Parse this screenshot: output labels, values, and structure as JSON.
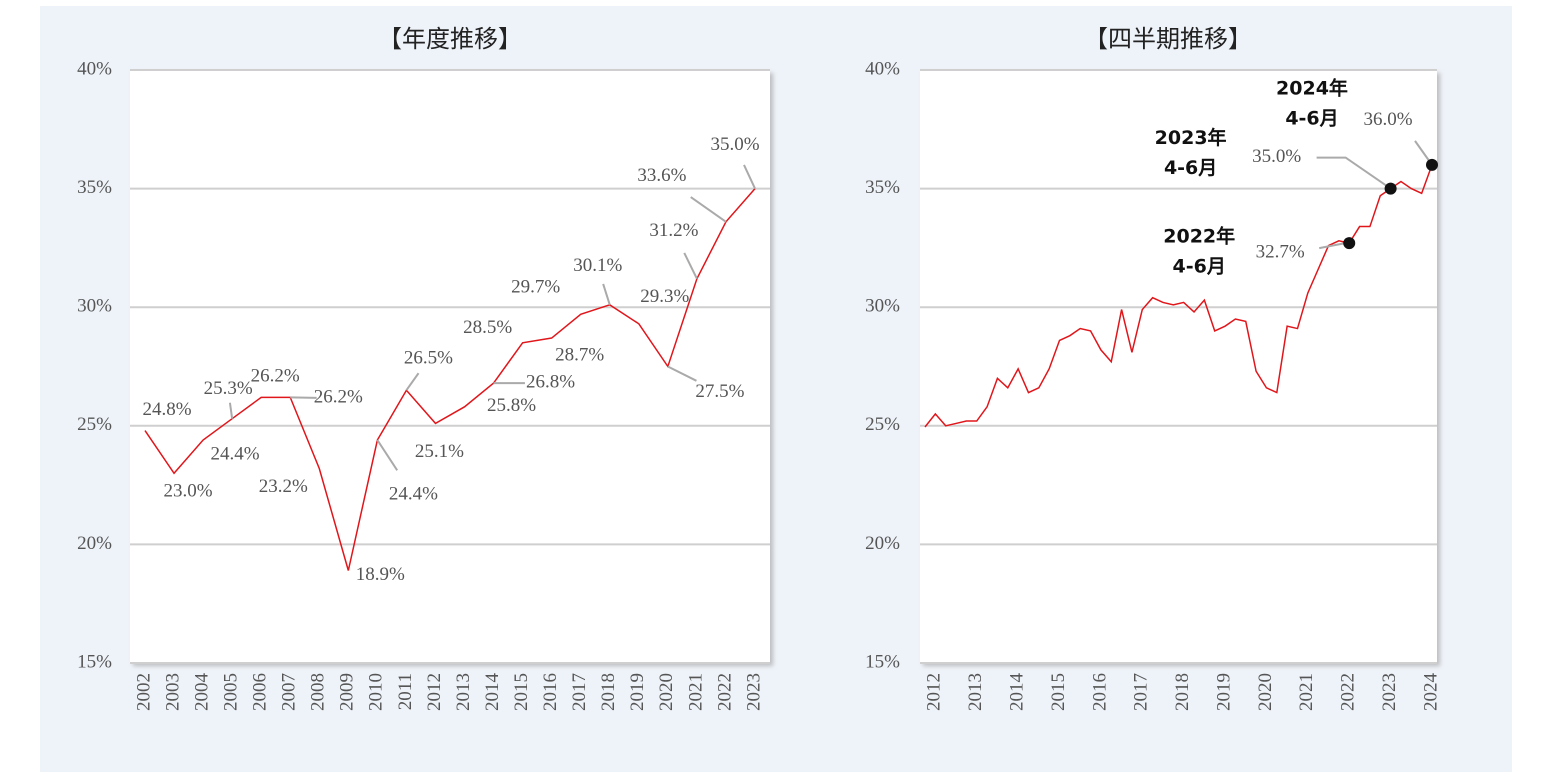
{
  "chart_data": [
    {
      "type": "line",
      "title": "【年度推移】",
      "categories": [
        "2002",
        "2003",
        "2004",
        "2005",
        "2006",
        "2007",
        "2008",
        "2009",
        "2010",
        "2011",
        "2012",
        "2013",
        "2014",
        "2015",
        "2016",
        "2017",
        "2018",
        "2019",
        "2020",
        "2021",
        "2022",
        "2023"
      ],
      "values": [
        24.8,
        23.0,
        24.4,
        25.3,
        26.2,
        26.2,
        23.2,
        18.9,
        24.4,
        26.5,
        25.1,
        25.8,
        26.8,
        28.5,
        28.7,
        29.7,
        30.1,
        29.3,
        27.5,
        31.2,
        33.6,
        35.0
      ],
      "value_labels": [
        "24.8%",
        "23.0%",
        "24.4%",
        "25.3%",
        "26.2%",
        "26.2%",
        "23.2%",
        "18.9%",
        "24.4%",
        "26.5%",
        "25.1%",
        "25.8%",
        "26.8%",
        "28.5%",
        "28.7%",
        "29.7%",
        "30.1%",
        "29.3%",
        "27.5%",
        "31.2%",
        "33.6%",
        "35.0%"
      ],
      "color": "#e0161b",
      "ylim": [
        15,
        40
      ],
      "yticks": [
        {
          "value": 15,
          "label": "15%"
        },
        {
          "value": 20,
          "label": "20%"
        },
        {
          "value": 25,
          "label": "25%"
        },
        {
          "value": 30,
          "label": "30%"
        },
        {
          "value": 35,
          "label": "35%"
        },
        {
          "value": 40,
          "label": "40%"
        }
      ],
      "grid": true
    },
    {
      "type": "line",
      "title": "【四半期推移】",
      "categories": [
        null,
        "2012",
        null,
        null,
        null,
        "2013",
        null,
        null,
        null,
        "2014",
        null,
        null,
        null,
        "2015",
        null,
        null,
        null,
        "2016",
        null,
        null,
        null,
        "2017",
        null,
        null,
        null,
        "2018",
        null,
        null,
        null,
        "2019",
        null,
        null,
        null,
        "2020",
        null,
        null,
        null,
        "2021",
        null,
        null,
        null,
        "2022",
        null,
        null,
        null,
        "2023",
        null,
        null,
        null,
        "2024"
      ],
      "values": [
        24.95,
        25.5,
        25.0,
        25.1,
        25.2,
        25.2,
        25.8,
        27.0,
        26.6,
        27.4,
        26.4,
        26.6,
        27.4,
        28.6,
        28.8,
        29.1,
        29.0,
        28.2,
        27.7,
        29.9,
        28.1,
        29.9,
        30.4,
        30.2,
        30.1,
        30.2,
        29.8,
        30.3,
        29.0,
        29.2,
        29.5,
        29.4,
        27.3,
        26.6,
        26.4,
        29.2,
        29.1,
        30.6,
        31.6,
        32.6,
        32.8,
        32.7,
        33.4,
        33.4,
        34.7,
        35.0,
        35.3,
        35.0,
        34.8,
        36.0
      ],
      "color": "#e0161b",
      "ylim": [
        15,
        40
      ],
      "yticks": [
        {
          "value": 15,
          "label": "15%"
        },
        {
          "value": 20,
          "label": "20%"
        },
        {
          "value": 25,
          "label": "25%"
        },
        {
          "value": 30,
          "label": "30%"
        },
        {
          "value": 35,
          "label": "35%"
        },
        {
          "value": 40,
          "label": "40%"
        }
      ],
      "grid": true,
      "annotations": [
        {
          "index": 41,
          "lines": [
            "2022年",
            "4-6月"
          ],
          "value_label": "32.7%"
        },
        {
          "index": 45,
          "lines": [
            "2023年",
            "4-6月"
          ],
          "value_label": "35.0%"
        },
        {
          "index": 49,
          "lines": [
            "2024年",
            "4-6月"
          ],
          "value_label": "36.0%"
        }
      ]
    }
  ]
}
